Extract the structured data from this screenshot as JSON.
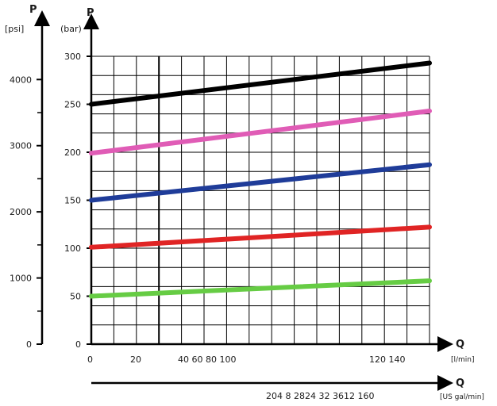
{
  "chart_data": {
    "type": "line",
    "left_axis": {
      "letter": "P",
      "unit": "[psi]",
      "ticks": [
        "0",
        "1000",
        "2000",
        "3000",
        "4000"
      ],
      "tick_values": [
        0,
        1000,
        2000,
        3000,
        4000
      ]
    },
    "y_axis": {
      "letter": "P",
      "unit": "(bar)",
      "ticks": [
        "0",
        "50",
        "100",
        "150",
        "200",
        "250",
        "300"
      ],
      "tick_values": [
        0,
        50,
        100,
        150,
        200,
        250,
        300
      ],
      "ylim": [
        0,
        300
      ]
    },
    "x_axis": {
      "letter": "Q",
      "unit": "[l/min]",
      "labels": [
        "0",
        "20",
        "40 60 80 100",
        "120 140"
      ],
      "xlim": [
        0,
        150
      ]
    },
    "x2_axis": {
      "letter": "Q",
      "unit": "[US gal/min]",
      "labels": [
        "204 8 2824 32 3612 160"
      ]
    },
    "grid": true,
    "series": [
      {
        "color": "#000000",
        "x": [
          0,
          150
        ],
        "y": [
          250,
          293
        ]
      },
      {
        "color": "#e05cb6",
        "x": [
          0,
          150
        ],
        "y": [
          199,
          243
        ]
      },
      {
        "color": "#1f3c99",
        "x": [
          0,
          150
        ],
        "y": [
          150,
          187
        ]
      },
      {
        "color": "#e02424",
        "x": [
          0,
          150
        ],
        "y": [
          101,
          122
        ]
      },
      {
        "color": "#66cc44",
        "x": [
          0,
          150
        ],
        "y": [
          50,
          66
        ]
      }
    ]
  }
}
